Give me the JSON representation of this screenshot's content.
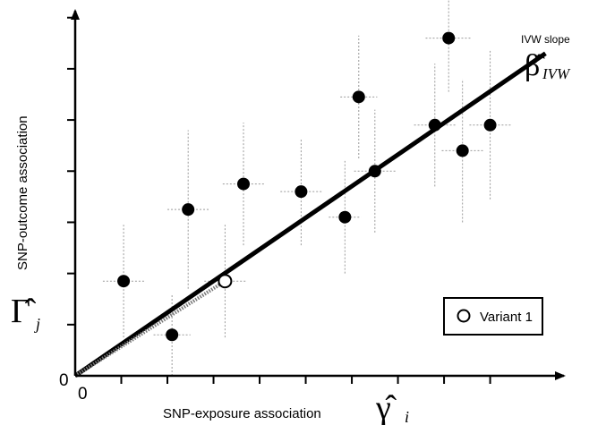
{
  "chart_data": {
    "type": "scatter",
    "xlabel": "SNP-exposure association",
    "xlabel_symbol": "γ̂",
    "xlabel_subscript": "i",
    "ylabel": "SNP-outcome association",
    "ylabel_symbol": "Γ̂",
    "ylabel_subscript": "j",
    "x_origin_label": "0",
    "y_origin_label": "0",
    "xlim": [
      0,
      10.6
    ],
    "ylim": [
      0,
      7.1
    ],
    "x_ticks": [
      1,
      2,
      3,
      4,
      5,
      6,
      7,
      8,
      9
    ],
    "y_ticks": [
      1,
      2,
      3,
      4,
      5,
      6,
      7
    ],
    "grid": false,
    "series": [
      {
        "marker": "filled-circle",
        "color": "#000000",
        "points": [
          {
            "x": 1.05,
            "y": 1.85,
            "x_err": 0.45,
            "y_err": 1.1
          },
          {
            "x": 2.1,
            "y": 0.8,
            "x_err": 0.4,
            "y_err": 0.8
          },
          {
            "x": 2.45,
            "y": 3.25,
            "x_err": 0.45,
            "y_err": 1.55
          },
          {
            "x": 3.65,
            "y": 3.75,
            "x_err": 0.45,
            "y_err": 1.2
          },
          {
            "x": 4.9,
            "y": 3.6,
            "x_err": 0.45,
            "y_err": 1.05
          },
          {
            "x": 5.85,
            "y": 3.1,
            "x_err": 0.35,
            "y_err": 1.1
          },
          {
            "x": 6.15,
            "y": 5.45,
            "x_err": 0.4,
            "y_err": 1.2
          },
          {
            "x": 6.5,
            "y": 4.0,
            "x_err": 0.45,
            "y_err": 1.2
          },
          {
            "x": 7.8,
            "y": 4.9,
            "x_err": 0.45,
            "y_err": 1.2
          },
          {
            "x": 8.1,
            "y": 6.6,
            "x_err": 0.5,
            "y_err": 1.05
          },
          {
            "x": 8.4,
            "y": 4.4,
            "x_err": 0.45,
            "y_err": 1.4
          },
          {
            "x": 9.0,
            "y": 4.9,
            "x_err": 0.45,
            "y_err": 1.45
          }
        ]
      },
      {
        "name": "Variant 1",
        "marker": "open-circle",
        "color": "#000000",
        "points": [
          {
            "x": 3.25,
            "y": 1.85,
            "x_err": 0.45,
            "y_err": 1.1
          }
        ]
      }
    ],
    "lines": [
      {
        "role": "ivw-fit",
        "x": [
          0,
          10.2
        ],
        "y": [
          0,
          6.3
        ],
        "style": "solid",
        "color": "#000000"
      },
      {
        "role": "variant-ratio",
        "x": [
          0,
          3.25
        ],
        "y": [
          0,
          1.85
        ],
        "style": "dotted",
        "color": "#777777"
      }
    ],
    "annotations": {
      "fit_label": "IVW slope",
      "fit_symbol": "β̂",
      "fit_subscript": "IVW"
    },
    "legend_position": "bottom-right"
  }
}
